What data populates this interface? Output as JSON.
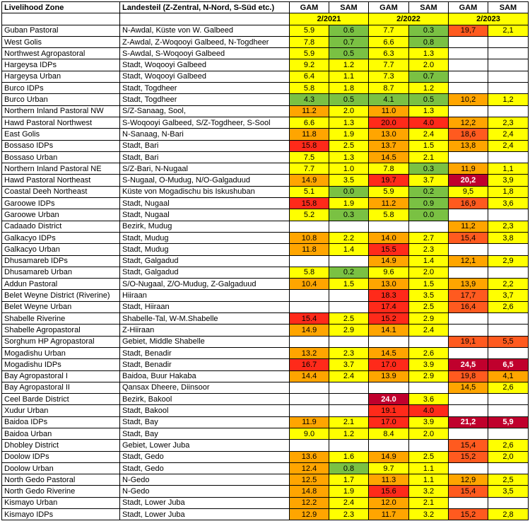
{
  "header": {
    "zone_label": "Livelihood Zone",
    "region_label": "Landesteil (Z-Zentral, N-Nord, S-Süd etc.)",
    "gam_label": "GAM",
    "sam_label": "SAM",
    "years": [
      "2/2021",
      "2/2022",
      "2/2023"
    ]
  },
  "colors": {
    "w": "#ffffff",
    "g": "#7ac143",
    "y": "#ffff00",
    "o": "#ffa500",
    "r": "#ff2a1a",
    "ro": "#ff5a1f",
    "dr": "#c0002d"
  },
  "rows": [
    {
      "zone": "Guban Pastoral",
      "region": "N-Awdal, Küste von W. Galbeed",
      "v": [
        [
          "5.9",
          "y"
        ],
        [
          "0.6",
          "g"
        ],
        [
          "7.7",
          "y"
        ],
        [
          "0.3",
          "g"
        ],
        [
          "19,7",
          "ro"
        ],
        [
          "2,1",
          "y"
        ]
      ]
    },
    {
      "zone": "West Golis",
      "region": "Z-Awdal, Z-Woqooyi Galbeed, N-Togdheer",
      "v": [
        [
          "7.8",
          "y"
        ],
        [
          "0.7",
          "g"
        ],
        [
          "6.6",
          "y"
        ],
        [
          "0.8",
          "g"
        ],
        [
          "",
          "w"
        ],
        [
          "",
          "w"
        ]
      ]
    },
    {
      "zone": "Northwest Agropastoral",
      "region": "S-Awdal, S-Woqooyi Galbeed",
      "v": [
        [
          "5.9",
          "y"
        ],
        [
          "0.5",
          "g"
        ],
        [
          "6.3",
          "y"
        ],
        [
          "1.3",
          "y"
        ],
        [
          "",
          "w"
        ],
        [
          "",
          "w"
        ]
      ]
    },
    {
      "zone": "Hargeysa IDPs",
      "region": "Stadt, Woqooyi Galbeed",
      "v": [
        [
          "9.2",
          "y"
        ],
        [
          "1.2",
          "y"
        ],
        [
          "7.7",
          "y"
        ],
        [
          "2.0",
          "y"
        ],
        [
          "",
          "w"
        ],
        [
          "",
          "w"
        ]
      ]
    },
    {
      "zone": "Hargeysa Urban",
      "region": "Stadt, Woqooyi Galbeed",
      "v": [
        [
          "6.4",
          "y"
        ],
        [
          "1.1",
          "y"
        ],
        [
          "7.3",
          "y"
        ],
        [
          "0.7",
          "g"
        ],
        [
          "",
          "w"
        ],
        [
          "",
          "w"
        ]
      ]
    },
    {
      "zone": "Burco IDPs",
      "region": "Stadt, Togdheer",
      "v": [
        [
          "5.8",
          "y"
        ],
        [
          "1.8",
          "y"
        ],
        [
          "8.7",
          "y"
        ],
        [
          "1.2",
          "y"
        ],
        [
          "",
          "w"
        ],
        [
          "",
          "w"
        ]
      ]
    },
    {
      "zone": "Burco Urban",
      "region": "Stadt, Togdheer",
      "v": [
        [
          "4.3",
          "g"
        ],
        [
          "0.5",
          "g"
        ],
        [
          "4.1",
          "g"
        ],
        [
          "0.5",
          "g"
        ],
        [
          "10,2",
          "o"
        ],
        [
          "1,2",
          "y"
        ]
      ]
    },
    {
      "zone": "Northern Inland Pastoral NW",
      "region": "S/Z-Sanaag, Sool,",
      "v": [
        [
          "11.2",
          "o"
        ],
        [
          "2.0",
          "y"
        ],
        [
          "11.0",
          "o"
        ],
        [
          "1.3",
          "y"
        ],
        [
          "",
          "w"
        ],
        [
          "",
          "w"
        ]
      ]
    },
    {
      "zone": "Hawd Pastoral Northwest",
      "region": "S-Woqooyi Galbeed, S/Z-Togdheer, S-Sool",
      "v": [
        [
          "6.6",
          "y"
        ],
        [
          "1.3",
          "y"
        ],
        [
          "20.0",
          "r"
        ],
        [
          "4.0",
          "r"
        ],
        [
          "12,2",
          "o"
        ],
        [
          "2,3",
          "y"
        ]
      ]
    },
    {
      "zone": "East Golis",
      "region": "N-Sanaag, N-Bari",
      "v": [
        [
          "11.8",
          "o"
        ],
        [
          "1.9",
          "y"
        ],
        [
          "13.0",
          "o"
        ],
        [
          "2.4",
          "y"
        ],
        [
          "18,6",
          "ro"
        ],
        [
          "2,4",
          "y"
        ]
      ]
    },
    {
      "zone": "Bossaso IDPs",
      "region": "Stadt, Bari",
      "v": [
        [
          "15.8",
          "r"
        ],
        [
          "2.5",
          "y"
        ],
        [
          "13.7",
          "o"
        ],
        [
          "1.5",
          "y"
        ],
        [
          "13,8",
          "o"
        ],
        [
          "2,4",
          "y"
        ]
      ]
    },
    {
      "zone": "Bossaso Urban",
      "region": "Stadt, Bari",
      "v": [
        [
          "7.5",
          "y"
        ],
        [
          "1.3",
          "y"
        ],
        [
          "14.5",
          "o"
        ],
        [
          "2.1",
          "y"
        ],
        [
          "",
          "w"
        ],
        [
          "",
          "w"
        ]
      ]
    },
    {
      "zone": "Northern Inland Pastoral NE",
      "region": "S/Z-Bari, N-Nugaal",
      "v": [
        [
          "7.7",
          "y"
        ],
        [
          "1.0",
          "y"
        ],
        [
          "7.8",
          "y"
        ],
        [
          "0.3",
          "g"
        ],
        [
          "11,9",
          "o"
        ],
        [
          "1,1",
          "y"
        ]
      ]
    },
    {
      "zone": "Hawd Pastoral Northeast",
      "region": "S-Nugaal, O-Mudug, N/O-Galgaduud",
      "v": [
        [
          "14.9",
          "o"
        ],
        [
          "3.5",
          "y"
        ],
        [
          "19.7",
          "r"
        ],
        [
          "3.7",
          "y"
        ],
        [
          "20,2",
          "dr"
        ],
        [
          "3,9",
          "y"
        ]
      ]
    },
    {
      "zone": "Coastal Deeh Northeast",
      "region": "Küste von Mogadischu bis Iskushuban",
      "v": [
        [
          "5.1",
          "y"
        ],
        [
          "0.0",
          "g"
        ],
        [
          "5.9",
          "y"
        ],
        [
          "0.2",
          "g"
        ],
        [
          "9,5",
          "y"
        ],
        [
          "1,8",
          "y"
        ]
      ]
    },
    {
      "zone": "Garoowe IDPs",
      "region": "Stadt, Nugaal",
      "v": [
        [
          "15.8",
          "r"
        ],
        [
          "1.9",
          "y"
        ],
        [
          "11.2",
          "o"
        ],
        [
          "0.9",
          "g"
        ],
        [
          "16,9",
          "ro"
        ],
        [
          "3,6",
          "y"
        ]
      ]
    },
    {
      "zone": "Garoowe Urban",
      "region": "Stadt, Nugaal",
      "v": [
        [
          "5.2",
          "y"
        ],
        [
          "0.3",
          "g"
        ],
        [
          "5.8",
          "y"
        ],
        [
          "0.0",
          "g"
        ],
        [
          "",
          "w"
        ],
        [
          "",
          "w"
        ]
      ]
    },
    {
      "zone": "Cadaado District",
      "region": "Bezirk, Mudug",
      "v": [
        [
          "",
          "w"
        ],
        [
          "",
          "w"
        ],
        [
          "",
          "w"
        ],
        [
          "",
          "w"
        ],
        [
          "11,2",
          "o"
        ],
        [
          "2,3",
          "y"
        ]
      ]
    },
    {
      "zone": "Galkacyo IDPs",
      "region": "Stadt, Mudug",
      "v": [
        [
          "10.8",
          "o"
        ],
        [
          "2.2",
          "y"
        ],
        [
          "14.0",
          "o"
        ],
        [
          "2.7",
          "y"
        ],
        [
          "15,4",
          "ro"
        ],
        [
          "3,8",
          "y"
        ]
      ]
    },
    {
      "zone": "Galkacyo Urban",
      "region": "Stadt, Mudug",
      "v": [
        [
          "11.8",
          "o"
        ],
        [
          "1.4",
          "y"
        ],
        [
          "15.5",
          "r"
        ],
        [
          "2.3",
          "y"
        ],
        [
          "",
          "w"
        ],
        [
          "",
          "w"
        ]
      ]
    },
    {
      "zone": "Dhusamareb IDPs",
      "region": "Stadt, Galgadud",
      "v": [
        [
          "",
          "w"
        ],
        [
          "",
          "w"
        ],
        [
          "14.9",
          "o"
        ],
        [
          "1.4",
          "y"
        ],
        [
          "12,1",
          "o"
        ],
        [
          "2,9",
          "y"
        ]
      ]
    },
    {
      "zone": "Dhusamareb Urban",
      "region": "Stadt, Galgadud",
      "v": [
        [
          "5.8",
          "y"
        ],
        [
          "0.2",
          "g"
        ],
        [
          "9.6",
          "y"
        ],
        [
          "2.0",
          "y"
        ],
        [
          "",
          "w"
        ],
        [
          "",
          "w"
        ]
      ]
    },
    {
      "zone": "Addun Pastoral",
      "region": "S/O-Nugaal, Z/O-Mudug, Z-Galgaduud",
      "v": [
        [
          "10.4",
          "o"
        ],
        [
          "1.5",
          "y"
        ],
        [
          "13.0",
          "o"
        ],
        [
          "1.5",
          "y"
        ],
        [
          "13,9",
          "o"
        ],
        [
          "2,2",
          "y"
        ]
      ]
    },
    {
      "zone": "Belet Weyne District (Riverine)",
      "region": "Hiiraan",
      "v": [
        [
          "",
          "w"
        ],
        [
          "",
          "w"
        ],
        [
          "18.3",
          "r"
        ],
        [
          "3.5",
          "y"
        ],
        [
          "17,7",
          "ro"
        ],
        [
          "3,7",
          "y"
        ]
      ]
    },
    {
      "zone": "Belet Weyne Urban",
      "region": "Stadt, Hiiraan",
      "v": [
        [
          "",
          "w"
        ],
        [
          "",
          "w"
        ],
        [
          "17.4",
          "r"
        ],
        [
          "2.5",
          "y"
        ],
        [
          "16,4",
          "ro"
        ],
        [
          "2,6",
          "y"
        ]
      ]
    },
    {
      "zone": "Shabelle Riverine",
      "region": "Shabelle-Tal, W-M.Shabelle",
      "v": [
        [
          "15.4",
          "r"
        ],
        [
          "2.5",
          "y"
        ],
        [
          "15.2",
          "r"
        ],
        [
          "2.9",
          "y"
        ],
        [
          "",
          "w"
        ],
        [
          "",
          "w"
        ]
      ]
    },
    {
      "zone": "Shabelle Agropastoral",
      "region": "Z-Hiiraan",
      "v": [
        [
          "14.9",
          "o"
        ],
        [
          "2.9",
          "y"
        ],
        [
          "14.1",
          "o"
        ],
        [
          "2.4",
          "y"
        ],
        [
          "",
          "w"
        ],
        [
          "",
          "w"
        ]
      ]
    },
    {
      "zone": "Sorghum HP Agropastoral",
      "region": "Gebiet, Middle Shabelle",
      "v": [
        [
          "",
          "w"
        ],
        [
          "",
          "w"
        ],
        [
          "",
          "w"
        ],
        [
          "",
          "w"
        ],
        [
          "19,1",
          "ro"
        ],
        [
          "5,5",
          "ro"
        ]
      ]
    },
    {
      "zone": "Mogadishu Urban",
      "region": "Stadt, Benadir",
      "v": [
        [
          "13.2",
          "o"
        ],
        [
          "2.3",
          "y"
        ],
        [
          "14.5",
          "o"
        ],
        [
          "2.6",
          "y"
        ],
        [
          "",
          "w"
        ],
        [
          "",
          "w"
        ]
      ]
    },
    {
      "zone": "Mogadishu IDPs",
      "region": "Stadt, Benadir",
      "v": [
        [
          "16.7",
          "r"
        ],
        [
          "3.7",
          "y"
        ],
        [
          "17.0",
          "r"
        ],
        [
          "3.9",
          "y"
        ],
        [
          "24,5",
          "dr"
        ],
        [
          "6,5",
          "dr"
        ]
      ]
    },
    {
      "zone": "Bay Agropastoral I",
      "region": "Baidoa, Buur Hakaba",
      "v": [
        [
          "14.4",
          "o"
        ],
        [
          "2.4",
          "y"
        ],
        [
          "13.9",
          "o"
        ],
        [
          "2.9",
          "y"
        ],
        [
          "19,8",
          "ro"
        ],
        [
          "4,1",
          "o"
        ]
      ]
    },
    {
      "zone": "Bay Agropastoral II",
      "region": "Qansax Dheere, Diinsoor",
      "v": [
        [
          "",
          "w"
        ],
        [
          "",
          "w"
        ],
        [
          "",
          "w"
        ],
        [
          "",
          "w"
        ],
        [
          "14,5",
          "o"
        ],
        [
          "2,6",
          "y"
        ]
      ]
    },
    {
      "zone": "Ceel Barde District",
      "region": "Bezirk, Bakool",
      "v": [
        [
          "",
          "w"
        ],
        [
          "",
          "w"
        ],
        [
          "24.0",
          "dr"
        ],
        [
          "3.6",
          "y"
        ],
        [
          "",
          "w"
        ],
        [
          "",
          "w"
        ]
      ]
    },
    {
      "zone": "Xudur Urban",
      "region": "Stadt, Bakool",
      "v": [
        [
          "",
          "w"
        ],
        [
          "",
          "w"
        ],
        [
          "19.1",
          "r"
        ],
        [
          "4.0",
          "r"
        ],
        [
          "",
          "w"
        ],
        [
          "",
          "w"
        ]
      ]
    },
    {
      "zone": "Baidoa IDPs",
      "region": "Stadt, Bay",
      "v": [
        [
          "11.9",
          "o"
        ],
        [
          "2.1",
          "y"
        ],
        [
          "17.0",
          "r"
        ],
        [
          "3.9",
          "y"
        ],
        [
          "21,2",
          "dr"
        ],
        [
          "5,9",
          "dr"
        ]
      ]
    },
    {
      "zone": "Baidoa Urban",
      "region": "Stadt, Bay",
      "v": [
        [
          "9.0",
          "y"
        ],
        [
          "1.2",
          "y"
        ],
        [
          "8.4",
          "y"
        ],
        [
          "2.0",
          "y"
        ],
        [
          "",
          "w"
        ],
        [
          "",
          "w"
        ]
      ]
    },
    {
      "zone": "Dhobley District",
      "region": "Gebiet, Lower Juba",
      "v": [
        [
          "",
          "w"
        ],
        [
          "",
          "w"
        ],
        [
          "",
          "w"
        ],
        [
          "",
          "w"
        ],
        [
          "15,4",
          "ro"
        ],
        [
          "2,6",
          "y"
        ]
      ]
    },
    {
      "zone": "Doolow IDPs",
      "region": "Stadt, Gedo",
      "v": [
        [
          "13.6",
          "o"
        ],
        [
          "1.6",
          "y"
        ],
        [
          "14.9",
          "o"
        ],
        [
          "2.5",
          "y"
        ],
        [
          "15,2",
          "ro"
        ],
        [
          "2,0",
          "y"
        ]
      ]
    },
    {
      "zone": "Doolow Urban",
      "region": "Stadt, Gedo",
      "v": [
        [
          "12.4",
          "o"
        ],
        [
          "0.8",
          "g"
        ],
        [
          "9.7",
          "y"
        ],
        [
          "1.1",
          "y"
        ],
        [
          "",
          "w"
        ],
        [
          "",
          "w"
        ]
      ]
    },
    {
      "zone": "North Gedo Pastoral",
      "region": "N-Gedo",
      "v": [
        [
          "12.5",
          "o"
        ],
        [
          "1.7",
          "y"
        ],
        [
          "11.3",
          "o"
        ],
        [
          "1.1",
          "y"
        ],
        [
          "12,9",
          "o"
        ],
        [
          "2,5",
          "y"
        ]
      ]
    },
    {
      "zone": "North Gedo Riverine",
      "region": "N-Gedo",
      "v": [
        [
          "14.8",
          "o"
        ],
        [
          "1.9",
          "y"
        ],
        [
          "15.6",
          "r"
        ],
        [
          "3.2",
          "y"
        ],
        [
          "15,4",
          "ro"
        ],
        [
          "3,5",
          "y"
        ]
      ]
    },
    {
      "zone": "Kismayo Urban",
      "region": "Stadt, Lower Juba",
      "v": [
        [
          "12.2",
          "o"
        ],
        [
          "2.4",
          "y"
        ],
        [
          "12.0",
          "o"
        ],
        [
          "2.1",
          "y"
        ],
        [
          "",
          "w"
        ],
        [
          "",
          "w"
        ]
      ]
    },
    {
      "zone": "Kismayo IDPs",
      "region": "Stadt, Lower Juba",
      "v": [
        [
          "12.9",
          "o"
        ],
        [
          "2.3",
          "y"
        ],
        [
          "11.7",
          "o"
        ],
        [
          "3.2",
          "y"
        ],
        [
          "15,2",
          "ro"
        ],
        [
          "2,8",
          "y"
        ]
      ]
    }
  ]
}
